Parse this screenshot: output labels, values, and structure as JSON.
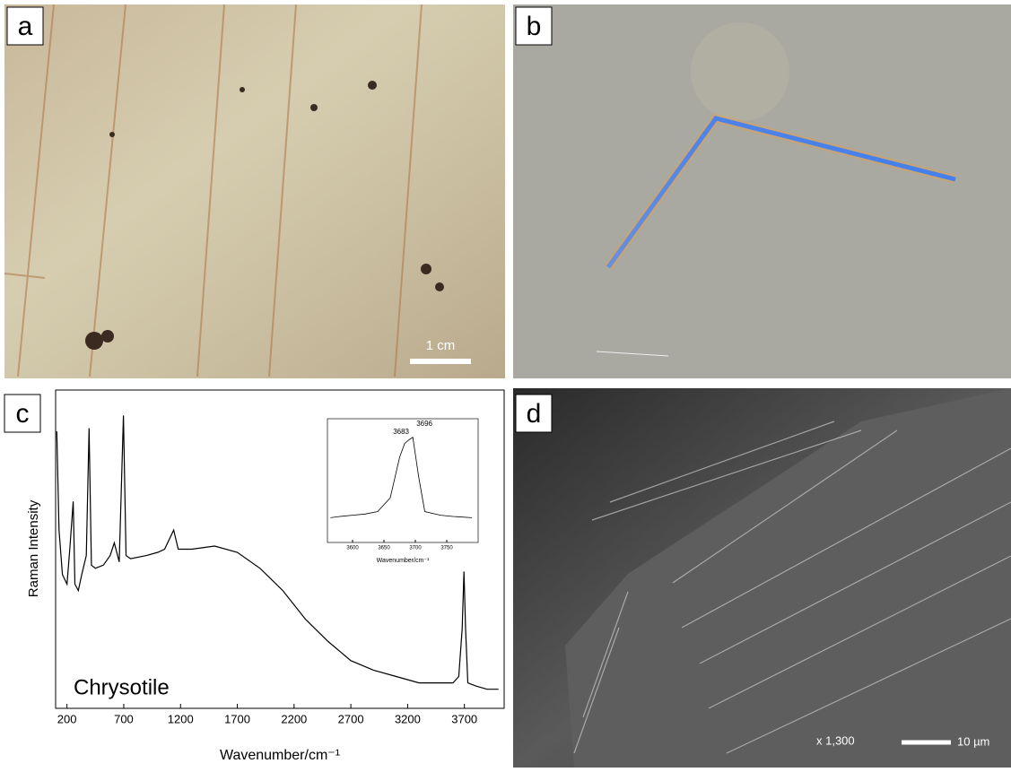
{
  "panels": [
    {
      "label": "a",
      "scale_bar": "1 cm"
    },
    {
      "label": "b"
    },
    {
      "label": "c"
    },
    {
      "label": "d",
      "magnification": "x 1,300",
      "scale_bar": "10 µm"
    }
  ],
  "chart_data": [
    {
      "type": "line",
      "xlabel": "Wavenumber/cm⁻¹",
      "ylabel": "Raman Intensity",
      "annotation": "Chrysotile",
      "color": "#000000",
      "x": [
        110,
        130,
        160,
        200,
        225,
        255,
        270,
        300,
        330,
        370,
        395,
        415,
        450,
        520,
        580,
        617,
        660,
        697,
        720,
        760,
        900,
        1000,
        1060,
        1140,
        1180,
        1300,
        1500,
        1700,
        1900,
        2100,
        2300,
        2500,
        2700,
        2900,
        3100,
        3300,
        3500,
        3600,
        3650,
        3680,
        3696,
        3710,
        3730,
        3800,
        3900,
        4000
      ],
      "values": [
        87,
        56,
        42,
        39,
        50,
        65,
        39,
        37,
        42,
        48,
        88,
        45,
        44,
        45,
        48,
        52,
        46,
        92,
        48,
        47,
        48,
        49,
        50,
        56,
        50,
        50,
        51,
        49,
        44,
        37,
        28,
        21,
        15,
        12,
        10,
        8,
        8,
        8,
        10,
        25,
        43,
        25,
        8,
        7,
        6,
        6
      ],
      "xlim": [
        100,
        4050
      ],
      "ylim": [
        0,
        100
      ],
      "xticks": [
        200,
        700,
        1200,
        1700,
        2200,
        2700,
        3200,
        3700
      ]
    },
    {
      "type": "line",
      "xlabel": "Wavenumber/cm⁻¹",
      "annotations": [
        "3683",
        "3696"
      ],
      "color": "#000000",
      "x": [
        3565,
        3580,
        3600,
        3620,
        3640,
        3660,
        3675,
        3683,
        3690,
        3696,
        3705,
        3715,
        3740,
        3760,
        3790
      ],
      "values": [
        20,
        21,
        22,
        23,
        25,
        36,
        69,
        80,
        83,
        85,
        54,
        25,
        22,
        21,
        20
      ],
      "xlim": [
        3560,
        3800
      ],
      "ylim": [
        0,
        100
      ],
      "xticks": [
        3600,
        3650,
        3700,
        3750
      ]
    }
  ]
}
